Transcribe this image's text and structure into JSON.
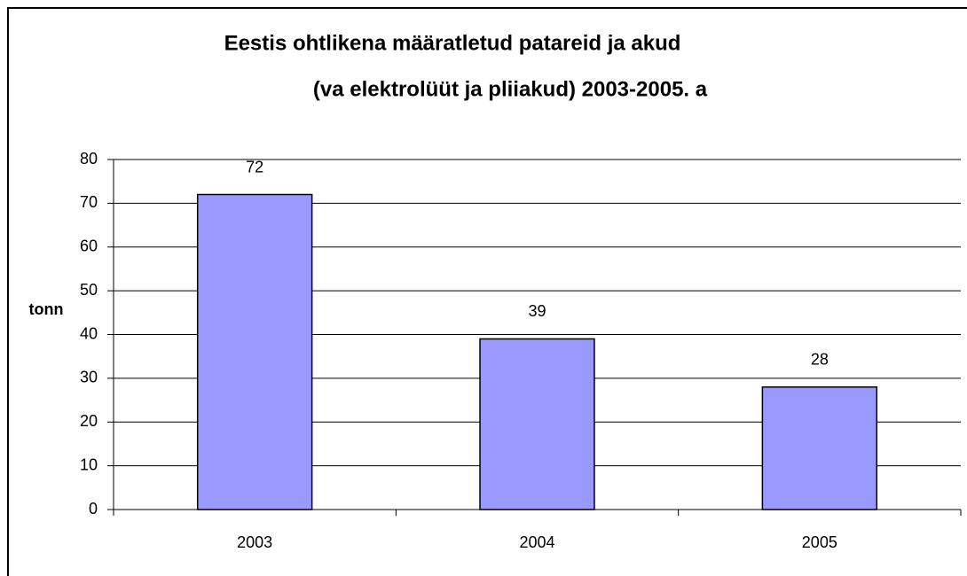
{
  "chart_data": {
    "type": "bar",
    "title": [
      "Eestis ohtlikena määratletud patareid ja akud",
      "(va elektrolüüt ja pliiakud) 2003-2005. a"
    ],
    "y_label": "tonn",
    "categories": [
      "2003",
      "2004",
      "2005"
    ],
    "values": [
      72,
      39,
      28
    ],
    "color": "#9999ff",
    "ylim": [
      0,
      80
    ],
    "yticks": [
      0,
      10,
      20,
      30,
      40,
      50,
      60,
      70,
      80
    ],
    "grid": true
  }
}
